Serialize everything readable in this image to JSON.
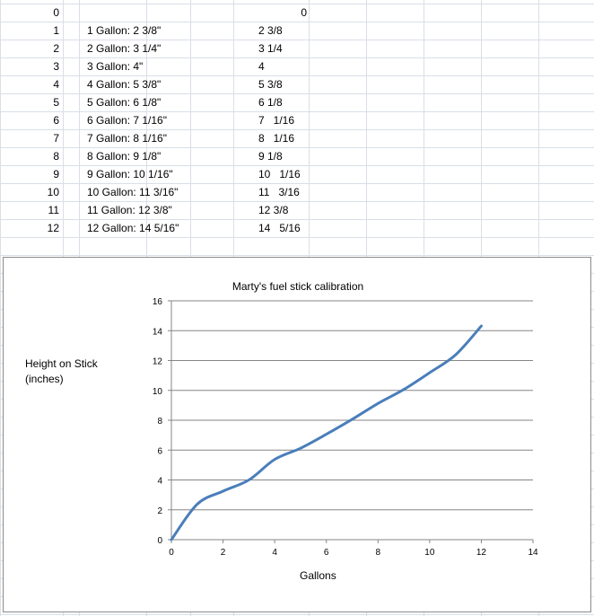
{
  "table": {
    "rows": [
      {
        "a": "0",
        "b": "",
        "e": "0"
      },
      {
        "a": "1",
        "b": "1 Gallon: 2 3/8\"",
        "e": "2 3/8"
      },
      {
        "a": "2",
        "b": "2 Gallon: 3 1/4\"",
        "e": "3 1/4"
      },
      {
        "a": "3",
        "b": "3 Gallon: 4\"",
        "e": "4"
      },
      {
        "a": "4",
        "b": "4 Gallon: 5 3/8\"",
        "e": "5 3/8"
      },
      {
        "a": "5",
        "b": "5 Gallon: 6 1/8\"",
        "e": "6 1/8"
      },
      {
        "a": "6",
        "b": "6 Gallon: 7 1/16\"",
        "e": "7   1/16"
      },
      {
        "a": "7",
        "b": "7 Gallon: 8 1/16\"",
        "e": "8   1/16"
      },
      {
        "a": "8",
        "b": "8 Gallon: 9 1/8\"",
        "e": "9 1/8"
      },
      {
        "a": "9",
        "b": "9 Gallon: 10 1/16\"",
        "e": "10   1/16"
      },
      {
        "a": "10",
        "b": "10 Gallon: 11 3/16\"",
        "e": "11   3/16"
      },
      {
        "a": "11",
        "b": "11 Gallon: 12 3/8\"",
        "e": "12 3/8"
      },
      {
        "a": "12",
        "b": "12 Gallon: 14 5/16\"",
        "e": "14   5/16"
      }
    ]
  },
  "chart_data": {
    "type": "line",
    "title": "Marty's fuel stick calibration",
    "xlabel": "Gallons",
    "ylabel": "Height on Stick\n(inches)",
    "xlim": [
      0,
      14
    ],
    "ylim": [
      0,
      16
    ],
    "xticks": [
      0,
      2,
      4,
      6,
      8,
      10,
      12,
      14
    ],
    "yticks": [
      0,
      2,
      4,
      6,
      8,
      10,
      12,
      14,
      16
    ],
    "grid": "horizontal",
    "legend": "none",
    "series_color": "#4a7ebb",
    "series": [
      {
        "x": [
          0,
          1,
          2,
          3,
          4,
          5,
          6,
          7,
          8,
          9,
          10,
          11,
          12
        ],
        "values": [
          0,
          2.375,
          3.25,
          4,
          5.375,
          6.125,
          7.0625,
          8.0625,
          9.125,
          10.0625,
          11.1875,
          12.375,
          14.3125
        ]
      }
    ]
  }
}
